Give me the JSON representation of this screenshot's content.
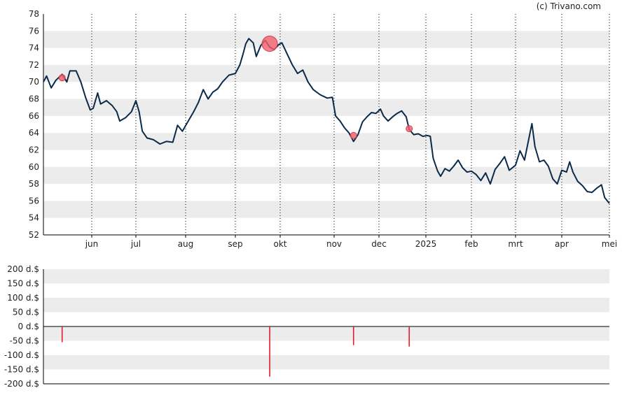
{
  "credit": "(c) Trivano.com",
  "colors": {
    "price_line": "#0b2a4a",
    "band": "#ececec",
    "event_marker": "#f2606e",
    "volume_bar": "#e41a2b",
    "axis": "#000000",
    "grid": "#000000"
  },
  "chart_data": [
    {
      "type": "line",
      "name": "price",
      "x_months": [
        "jun",
        "jul",
        "aug",
        "sep",
        "okt",
        "nov",
        "dec",
        "2025",
        "feb",
        "mrt",
        "apr",
        "mei"
      ],
      "yticks": [
        "52",
        "54",
        "56",
        "58",
        "60",
        "62",
        "64",
        "66",
        "68",
        "70",
        "72",
        "74",
        "76",
        "78"
      ],
      "ylim": [
        52,
        78
      ],
      "grid_vertical": "dotted",
      "bands": "alternating every 2 units",
      "series": [
        {
          "points": [
            [
              "2024-05-01",
              70.0
            ],
            [
              "2024-05-03",
              70.7
            ],
            [
              "2024-05-06",
              69.3
            ],
            [
              "2024-05-09",
              70.2
            ],
            [
              "2024-05-13",
              70.9
            ],
            [
              "2024-05-16",
              70.0
            ],
            [
              "2024-05-18",
              71.3
            ],
            [
              "2024-05-22",
              71.3
            ],
            [
              "2024-05-25",
              70.0
            ],
            [
              "2024-05-28",
              68.2
            ],
            [
              "2024-05-31",
              66.7
            ],
            [
              "2024-06-02",
              66.9
            ],
            [
              "2024-06-05",
              68.7
            ],
            [
              "2024-06-07",
              67.4
            ],
            [
              "2024-06-11",
              67.8
            ],
            [
              "2024-06-15",
              67.2
            ],
            [
              "2024-06-18",
              66.5
            ],
            [
              "2024-06-20",
              65.4
            ],
            [
              "2024-06-24",
              65.8
            ],
            [
              "2024-06-28",
              66.5
            ],
            [
              "2024-07-01",
              67.8
            ],
            [
              "2024-07-03",
              66.5
            ],
            [
              "2024-07-05",
              64.2
            ],
            [
              "2024-07-08",
              63.4
            ],
            [
              "2024-07-12",
              63.2
            ],
            [
              "2024-07-16",
              62.7
            ],
            [
              "2024-07-20",
              63.0
            ],
            [
              "2024-07-24",
              62.9
            ],
            [
              "2024-07-27",
              64.9
            ],
            [
              "2024-07-30",
              64.2
            ],
            [
              "2024-08-02",
              65.2
            ],
            [
              "2024-08-06",
              66.5
            ],
            [
              "2024-08-09",
              67.6
            ],
            [
              "2024-08-12",
              69.1
            ],
            [
              "2024-08-15",
              68.0
            ],
            [
              "2024-08-18",
              68.8
            ],
            [
              "2024-08-21",
              69.2
            ],
            [
              "2024-08-24",
              70.0
            ],
            [
              "2024-08-28",
              70.8
            ],
            [
              "2024-09-01",
              71.0
            ],
            [
              "2024-09-04",
              72.0
            ],
            [
              "2024-09-06",
              73.2
            ],
            [
              "2024-09-08",
              74.5
            ],
            [
              "2024-09-10",
              75.1
            ],
            [
              "2024-09-13",
              74.6
            ],
            [
              "2024-09-15",
              73.0
            ],
            [
              "2024-09-18",
              74.3
            ],
            [
              "2024-09-21",
              74.9
            ],
            [
              "2024-09-24",
              74.1
            ],
            [
              "2024-09-27",
              73.8
            ],
            [
              "2024-09-30",
              74.4
            ],
            [
              "2024-10-02",
              74.6
            ],
            [
              "2024-10-05",
              73.3
            ],
            [
              "2024-10-08",
              72.0
            ],
            [
              "2024-10-11",
              71.0
            ],
            [
              "2024-10-14",
              71.4
            ],
            [
              "2024-10-17",
              70.0
            ],
            [
              "2024-10-20",
              69.1
            ],
            [
              "2024-10-24",
              68.5
            ],
            [
              "2024-10-28",
              68.1
            ],
            [
              "2024-10-31",
              68.2
            ],
            [
              "2024-11-02",
              66.0
            ],
            [
              "2024-11-05",
              65.4
            ],
            [
              "2024-11-08",
              64.6
            ],
            [
              "2024-11-11",
              64.0
            ],
            [
              "2024-11-14",
              63.0
            ],
            [
              "2024-11-17",
              63.8
            ],
            [
              "2024-11-20",
              65.3
            ],
            [
              "2024-11-23",
              65.9
            ],
            [
              "2024-11-26",
              66.4
            ],
            [
              "2024-11-29",
              66.3
            ],
            [
              "2024-12-02",
              66.8
            ],
            [
              "2024-12-04",
              66.0
            ],
            [
              "2024-12-07",
              65.4
            ],
            [
              "2024-12-10",
              65.9
            ],
            [
              "2024-12-13",
              66.3
            ],
            [
              "2024-12-16",
              66.6
            ],
            [
              "2024-12-19",
              65.9
            ],
            [
              "2024-12-21",
              64.4
            ],
            [
              "2024-12-24",
              63.8
            ],
            [
              "2024-12-27",
              63.9
            ],
            [
              "2024-12-30",
              63.6
            ],
            [
              "2025-01-02",
              63.7
            ],
            [
              "2025-01-04",
              63.6
            ],
            [
              "2025-01-06",
              61.0
            ],
            [
              "2025-01-09",
              59.5
            ],
            [
              "2025-01-11",
              58.9
            ],
            [
              "2025-01-14",
              59.8
            ],
            [
              "2025-01-17",
              59.5
            ],
            [
              "2025-01-20",
              60.1
            ],
            [
              "2025-01-23",
              60.8
            ],
            [
              "2025-01-26",
              59.9
            ],
            [
              "2025-01-29",
              59.4
            ],
            [
              "2025-02-01",
              59.5
            ],
            [
              "2025-02-04",
              59.1
            ],
            [
              "2025-02-07",
              58.4
            ],
            [
              "2025-02-10",
              59.3
            ],
            [
              "2025-02-13",
              58.0
            ],
            [
              "2025-02-16",
              59.7
            ],
            [
              "2025-02-19",
              60.4
            ],
            [
              "2025-02-22",
              61.2
            ],
            [
              "2025-02-25",
              59.6
            ],
            [
              "2025-03-01",
              60.2
            ],
            [
              "2025-03-04",
              61.9
            ],
            [
              "2025-03-07",
              60.8
            ],
            [
              "2025-03-10",
              63.4
            ],
            [
              "2025-03-12",
              65.1
            ],
            [
              "2025-03-14",
              62.4
            ],
            [
              "2025-03-17",
              60.6
            ],
            [
              "2025-03-20",
              60.8
            ],
            [
              "2025-03-23",
              60.1
            ],
            [
              "2025-03-26",
              58.6
            ],
            [
              "2025-03-29",
              58.0
            ],
            [
              "2025-04-01",
              59.6
            ],
            [
              "2025-04-04",
              59.4
            ],
            [
              "2025-04-06",
              60.6
            ],
            [
              "2025-04-08",
              59.4
            ],
            [
              "2025-04-11",
              58.3
            ],
            [
              "2025-04-14",
              57.8
            ],
            [
              "2025-04-17",
              57.1
            ],
            [
              "2025-04-20",
              57.0
            ],
            [
              "2025-04-23",
              57.5
            ],
            [
              "2025-04-26",
              57.9
            ],
            [
              "2025-04-28",
              56.4
            ],
            [
              "2025-05-01",
              55.7
            ]
          ]
        }
      ],
      "event_markers": [
        {
          "date": "2024-05-13",
          "value": 70.5,
          "size": "small"
        },
        {
          "date": "2024-09-24",
          "value": 74.5,
          "size": "large"
        },
        {
          "date": "2024-11-14",
          "value": 63.7,
          "size": "small"
        },
        {
          "date": "2024-12-21",
          "value": 64.5,
          "size": "small"
        }
      ]
    },
    {
      "type": "bar",
      "name": "dividend",
      "yticks": [
        "200 d.$",
        "150 d.$",
        "100 d.$",
        "50 d.$",
        "0 d.$",
        "-50 d.$",
        "-100 d.$",
        "-150 d.$",
        "-200 d.$"
      ],
      "ylim": [
        -200,
        200
      ],
      "bands": "alternating every 50 units",
      "bars": [
        {
          "date": "2024-05-13",
          "value": -55
        },
        {
          "date": "2024-09-24",
          "value": -175
        },
        {
          "date": "2024-11-14",
          "value": -65
        },
        {
          "date": "2024-12-21",
          "value": -70
        }
      ]
    }
  ]
}
